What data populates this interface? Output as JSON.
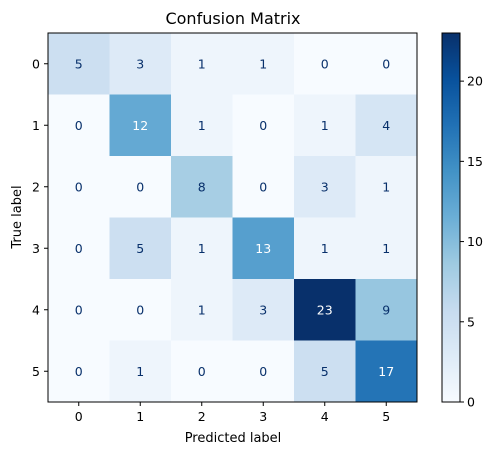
{
  "chart_data": {
    "type": "heatmap",
    "title": "Confusion Matrix",
    "xlabel": "Predicted label",
    "ylabel": "True label",
    "x_categories": [
      "0",
      "1",
      "2",
      "3",
      "4",
      "5"
    ],
    "y_categories": [
      "0",
      "1",
      "2",
      "3",
      "4",
      "5"
    ],
    "values": [
      [
        5,
        3,
        1,
        1,
        0,
        0
      ],
      [
        0,
        12,
        1,
        0,
        1,
        4
      ],
      [
        0,
        0,
        8,
        0,
        3,
        1
      ],
      [
        0,
        5,
        1,
        13,
        1,
        1
      ],
      [
        0,
        0,
        1,
        3,
        23,
        9
      ],
      [
        0,
        1,
        0,
        0,
        5,
        17
      ]
    ],
    "colormap": "Blues",
    "colorbar": {
      "range": [
        0,
        23
      ],
      "ticks": [
        0,
        5,
        10,
        15,
        20
      ]
    },
    "grid": false
  }
}
